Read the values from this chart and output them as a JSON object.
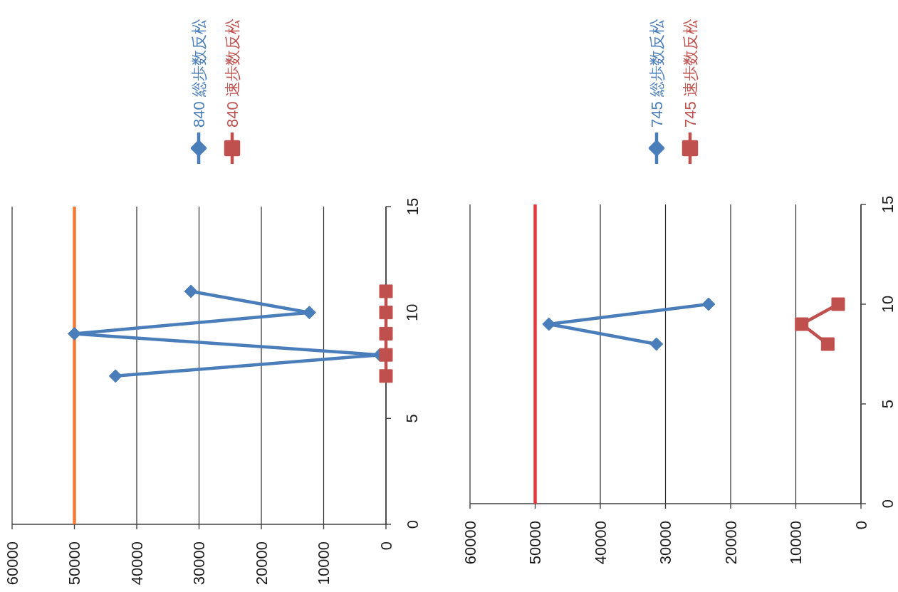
{
  "chart_data": [
    {
      "type": "line",
      "series": [
        {
          "name": "840 総歩数反松",
          "color": "#4a7ebb",
          "marker": "diamond",
          "x": [
            43400,
            1000,
            50000,
            12300,
            31300
          ],
          "values": [
            7,
            8,
            9,
            10,
            11
          ]
        },
        {
          "name": "840 速歩数反松",
          "color": "#c0504d",
          "marker": "square",
          "x": [
            0,
            0,
            0,
            0,
            0
          ],
          "values": [
            7,
            8,
            9,
            10,
            11
          ]
        }
      ],
      "xlim": [
        60000,
        0
      ],
      "xticks": [
        60000,
        50000,
        40000,
        30000,
        20000,
        10000,
        0
      ],
      "ylim": [
        0,
        15
      ],
      "yticks": [
        0,
        5,
        10,
        15
      ],
      "grid": "x",
      "legend": "top",
      "line_style": "solid",
      "ref_lines": [
        {
          "axis": "x",
          "value": 50000,
          "color": "#f47a3a"
        }
      ]
    },
    {
      "type": "line",
      "series": [
        {
          "name": "745 総歩数反松",
          "color": "#4a7ebb",
          "marker": "diamond",
          "x": [
            31400,
            47900,
            23400
          ],
          "values": [
            8,
            9,
            10
          ]
        },
        {
          "name": "745 速歩数反松",
          "color": "#c0504d",
          "marker": "square",
          "x": [
            5100,
            9100,
            3500
          ],
          "values": [
            8,
            9,
            10
          ]
        }
      ],
      "xlim": [
        60000,
        0
      ],
      "xticks": [
        60000,
        50000,
        40000,
        30000,
        20000,
        10000,
        0
      ],
      "ylim": [
        0,
        15
      ],
      "yticks": [
        0,
        5,
        10,
        15
      ],
      "grid": "x",
      "legend": "top",
      "line_style": "solid",
      "ref_lines": [
        {
          "axis": "x",
          "value": 50000,
          "color": "#e8373c"
        }
      ]
    }
  ]
}
